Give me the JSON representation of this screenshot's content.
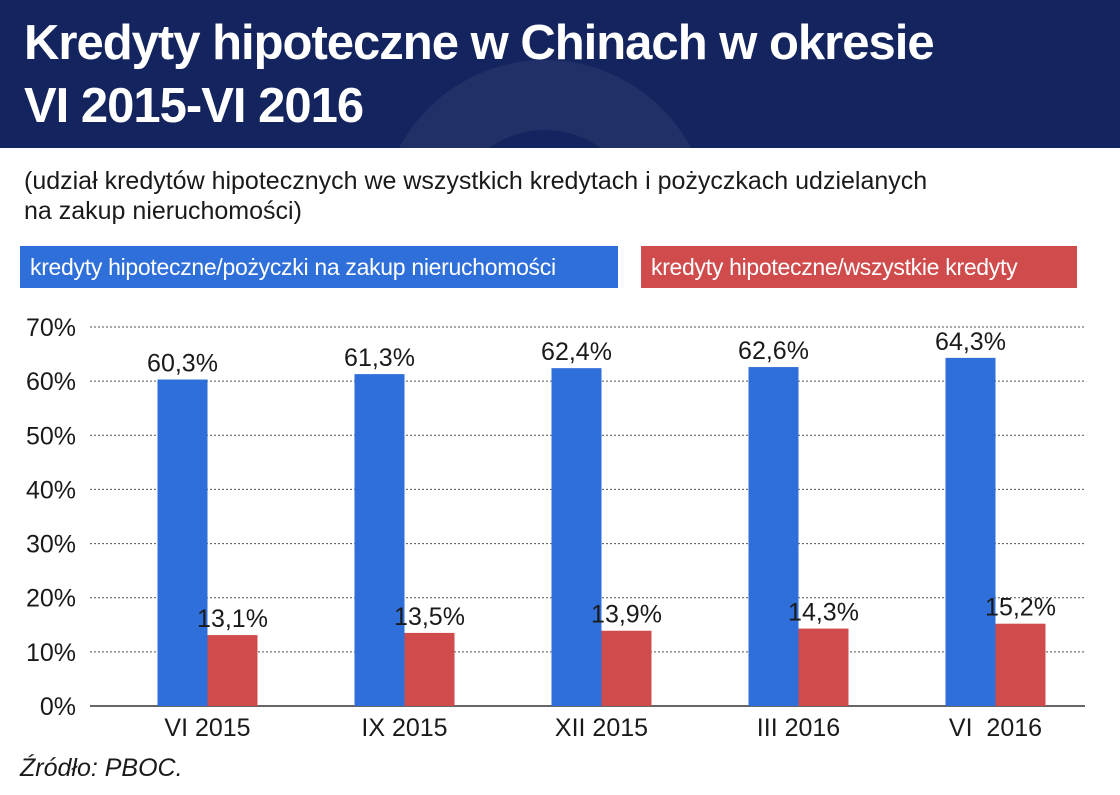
{
  "header": {
    "title_line1": "Kredyty hipoteczne w Chinach w okresie",
    "title_line2": "VI 2015-VI 2016"
  },
  "subtitle": {
    "line1": "(udział kredytów hipotecznych we wszystkich kredytach i pożyczkach udzielanych",
    "line2": "na zakup nieruchomości)"
  },
  "legend": {
    "blue_label": "kredyty hipoteczne/pożyczki na zakup nieruchomości",
    "red_label": "kredyty hipoteczne/wszystkie kredyty"
  },
  "source": "Źródło: PBOC.",
  "colors": {
    "header": "#14245e",
    "blue": "#2f6fd9",
    "red": "#d04b4b"
  },
  "chart_data": {
    "type": "bar",
    "categories": [
      "VI 2015",
      "IX 2015",
      "XII 2015",
      "III 2016",
      "VI  2016"
    ],
    "series": [
      {
        "name": "kredyty hipoteczne/pożyczki na zakup nieruchomości",
        "values": [
          60.3,
          61.3,
          62.4,
          62.6,
          64.3
        ],
        "labels": [
          "60,3%",
          "61,3%",
          "62,4%",
          "62,6%",
          "64,3%"
        ],
        "color": "#2f6fd9"
      },
      {
        "name": "kredyty hipoteczne/wszystkie kredyty",
        "values": [
          13.1,
          13.5,
          13.9,
          14.3,
          15.2
        ],
        "labels": [
          "13,1%",
          "13,5%",
          "13,9%",
          "14,3%",
          "15,2%"
        ],
        "color": "#d04b4b"
      }
    ],
    "yticks": [
      "0%",
      "10%",
      "20%",
      "30%",
      "40%",
      "50%",
      "60%",
      "70%"
    ],
    "ylim": [
      0,
      70
    ],
    "grid": true,
    "legend_position": "top"
  }
}
